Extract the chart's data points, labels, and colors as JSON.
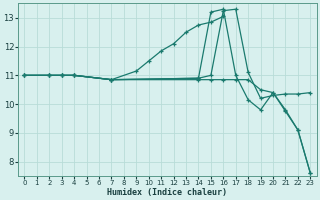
{
  "title": "",
  "xlabel": "Humidex (Indice chaleur)",
  "bg_color": "#d8f0ee",
  "grid_color": "#b8dcd8",
  "line_color": "#1a7a6e",
  "xlim": [
    -0.5,
    23.5
  ],
  "ylim": [
    7.5,
    13.5
  ],
  "xticks": [
    0,
    1,
    2,
    3,
    4,
    5,
    6,
    7,
    8,
    9,
    10,
    11,
    12,
    13,
    14,
    15,
    16,
    17,
    18,
    19,
    20,
    21,
    22,
    23
  ],
  "yticks": [
    8,
    9,
    10,
    11,
    12,
    13
  ],
  "lines": [
    {
      "x": [
        0,
        2,
        3,
        4,
        7,
        9,
        10,
        11,
        12,
        13,
        14,
        15,
        16
      ],
      "y": [
        11.0,
        11.0,
        11.0,
        11.0,
        10.85,
        11.15,
        11.5,
        11.85,
        12.1,
        12.5,
        12.75,
        12.85,
        13.05
      ]
    },
    {
      "x": [
        0,
        2,
        3,
        4,
        7,
        14,
        15,
        16,
        17,
        18,
        19,
        20,
        21,
        22,
        23
      ],
      "y": [
        11.0,
        11.0,
        11.0,
        11.0,
        10.85,
        10.9,
        11.0,
        13.25,
        13.3,
        11.1,
        10.2,
        10.3,
        10.35,
        10.35,
        10.4
      ]
    },
    {
      "x": [
        0,
        2,
        3,
        4,
        7,
        14,
        15,
        16,
        17,
        18,
        19,
        20,
        21,
        22,
        23
      ],
      "y": [
        11.0,
        11.0,
        11.0,
        11.0,
        10.85,
        10.9,
        13.2,
        13.3,
        11.0,
        10.15,
        9.8,
        10.4,
        9.75,
        9.1,
        7.6
      ]
    },
    {
      "x": [
        0,
        2,
        3,
        4,
        7,
        14,
        15,
        16,
        17,
        18,
        19,
        20,
        21,
        22,
        23
      ],
      "y": [
        11.0,
        11.0,
        11.0,
        11.0,
        10.85,
        10.85,
        10.85,
        10.85,
        10.85,
        10.85,
        10.5,
        10.4,
        9.8,
        9.1,
        7.6
      ]
    }
  ]
}
